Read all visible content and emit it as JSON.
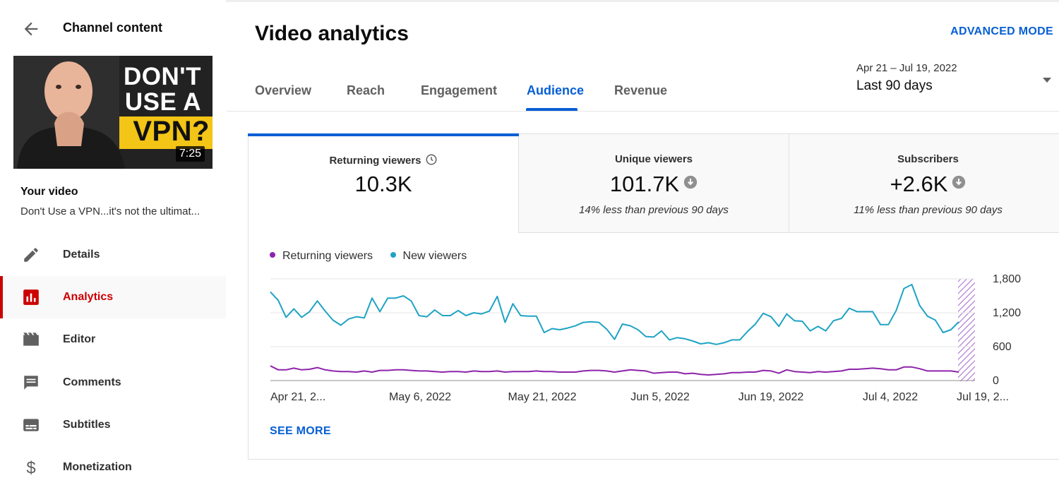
{
  "sidebar": {
    "title": "Channel content",
    "thumbnail": {
      "line1": "DON'T",
      "line2": "USE A",
      "line3": "VPN?",
      "duration": "7:25"
    },
    "your_video_label": "Your video",
    "video_title": "Don't Use a VPN...it's not the ultimat...",
    "items": [
      {
        "label": "Details",
        "icon": "pencil-icon"
      },
      {
        "label": "Analytics",
        "icon": "analytics-icon",
        "active": true
      },
      {
        "label": "Editor",
        "icon": "film-icon"
      },
      {
        "label": "Comments",
        "icon": "comment-icon"
      },
      {
        "label": "Subtitles",
        "icon": "subtitles-icon"
      },
      {
        "label": "Monetization",
        "icon": "dollar-icon"
      }
    ]
  },
  "header": {
    "title": "Video analytics",
    "advanced_mode": "ADVANCED MODE",
    "tabs": [
      "Overview",
      "Reach",
      "Engagement",
      "Audience",
      "Revenue"
    ],
    "active_tab": "Audience",
    "date_range": {
      "sub": "Apr 21 – Jul 19, 2022",
      "main": "Last 90 days"
    }
  },
  "metrics": [
    {
      "label": "Returning viewers",
      "value": "10.3K",
      "sub": ""
    },
    {
      "label": "Unique viewers",
      "value": "101.7K",
      "sub": "14% less than previous 90 days"
    },
    {
      "label": "Subscribers",
      "value": "+2.6K",
      "sub": "11% less than previous 90 days"
    }
  ],
  "colors": {
    "accent": "#065fd4",
    "active_nav": "#cc0000",
    "returning": "#8e24aa",
    "new": "#1fa3c4"
  },
  "chart_data": {
    "type": "line",
    "legend": [
      "Returning viewers",
      "New viewers"
    ],
    "x_tick_labels": [
      "Apr 21, 2...",
      "May 6, 2022",
      "May 21, 2022",
      "Jun 5, 2022",
      "Jun 19, 2022",
      "Jul 4, 2022",
      "Jul 19, 2..."
    ],
    "y_tick_labels": [
      "1,800",
      "1,200",
      "600",
      "0"
    ],
    "ylim": [
      0,
      1800
    ],
    "series": [
      {
        "name": "New viewers",
        "values": [
          1570,
          1420,
          1120,
          1270,
          1120,
          1220,
          1410,
          1230,
          1070,
          980,
          1090,
          1130,
          1110,
          1460,
          1220,
          1460,
          1460,
          1500,
          1410,
          1150,
          1130,
          1250,
          1150,
          1150,
          1240,
          1150,
          1200,
          1180,
          1230,
          1490,
          1030,
          1360,
          1150,
          1140,
          1140,
          850,
          920,
          900,
          930,
          970,
          1030,
          1040,
          1030,
          910,
          730,
          1000,
          970,
          900,
          780,
          770,
          880,
          720,
          760,
          740,
          700,
          650,
          670,
          640,
          670,
          720,
          720,
          870,
          1000,
          1190,
          1130,
          960,
          1180,
          1060,
          1050,
          880,
          960,
          880,
          1060,
          1100,
          1280,
          1220,
          1220,
          1220,
          990,
          990,
          1240,
          1630,
          1700,
          1330,
          1140,
          1070,
          850,
          900,
          1040
        ]
      },
      {
        "name": "Returning viewers",
        "values": [
          260,
          190,
          190,
          220,
          190,
          200,
          230,
          190,
          170,
          160,
          160,
          150,
          170,
          150,
          180,
          180,
          190,
          190,
          180,
          170,
          170,
          160,
          150,
          160,
          160,
          150,
          170,
          160,
          160,
          170,
          150,
          160,
          160,
          160,
          170,
          160,
          160,
          150,
          150,
          150,
          170,
          180,
          180,
          170,
          150,
          170,
          190,
          180,
          170,
          130,
          140,
          150,
          150,
          120,
          130,
          110,
          100,
          110,
          120,
          140,
          140,
          150,
          150,
          180,
          170,
          130,
          190,
          160,
          150,
          140,
          160,
          150,
          160,
          170,
          200,
          200,
          210,
          220,
          210,
          190,
          190,
          240,
          240,
          210,
          170,
          170,
          170,
          170,
          150
        ]
      }
    ]
  },
  "see_more": "SEE MORE"
}
